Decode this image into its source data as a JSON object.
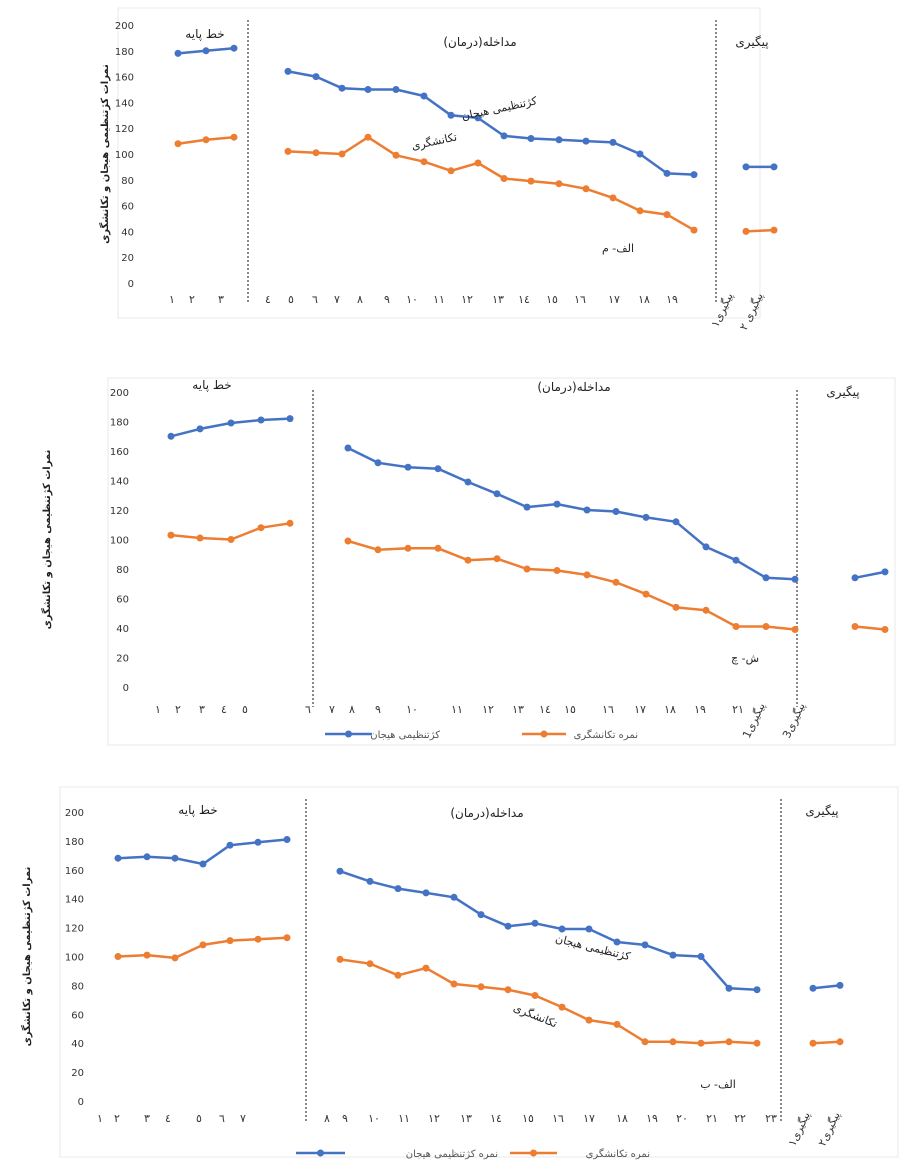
{
  "colors": {
    "anxiety": "#4472C4",
    "stammer": "#ED7D31"
  },
  "chart_data": [
    {
      "type": "line",
      "id": "top",
      "ylabel": "نمرات کژتنظیمی هیجان و تکانشگری",
      "ylim": [
        0,
        200
      ],
      "yticks": [
        "0",
        "20",
        "40",
        "60",
        "80",
        "100",
        "120",
        "140",
        "160",
        "180",
        "200"
      ],
      "phases": [
        "خط پایه",
        "مداخله(درمان)",
        "پیگیری"
      ],
      "x_labels": [
        "۱",
        "۲",
        "۳",
        "٤",
        "٥",
        "٦",
        "٧",
        "٨",
        "٩",
        "١٠",
        "١١",
        "١٢",
        "١٣",
        "١٤",
        "١٥",
        "١٦",
        "١٧",
        "١٨",
        "١٩",
        "پیگیری۱",
        "پیگیری ۲"
      ],
      "annotations": [
        "کژتنظیمی هیجان",
        "تکانشگری",
        "الف- م"
      ],
      "legend": [],
      "series": [
        {
          "key": "anxiety",
          "baseline": [
            178,
            180,
            182
          ],
          "treatment": [
            164,
            160,
            151,
            150,
            150,
            145,
            130,
            128,
            114,
            112,
            111,
            110,
            109,
            100,
            85,
            84
          ],
          "followup": [
            90,
            90
          ]
        },
        {
          "key": "stammer",
          "baseline": [
            108,
            111,
            113
          ],
          "treatment": [
            102,
            101,
            100,
            113,
            99,
            94,
            87,
            93,
            81,
            79,
            77,
            73,
            66,
            56,
            53,
            41
          ],
          "followup": [
            40,
            41
          ]
        }
      ]
    },
    {
      "type": "line",
      "id": "middle",
      "ylabel": "نمرات کژتنظیمی هیجان و تکانشگری",
      "ylim": [
        0,
        200
      ],
      "yticks": [
        "0",
        "20",
        "40",
        "60",
        "80",
        "100",
        "120",
        "140",
        "160",
        "180",
        "200"
      ],
      "phases": [
        "خط پایه",
        "مداخله(درمان)",
        "پیگیری"
      ],
      "x_labels": [
        "۱",
        "۲",
        "۳",
        "٤",
        "٥",
        "٦",
        "٧",
        "٨",
        "٩",
        "١٠",
        "١١",
        "١٢",
        "١٣",
        "١٤",
        "١٥",
        "١٦",
        "١٧",
        "١٨",
        "١٩",
        "٢١",
        "پیگیری1",
        "پیگیری3"
      ],
      "annotations": [
        "ش- چ"
      ],
      "legend": [
        "کژتنظیمی هیجان",
        "نمره تکانشگری"
      ],
      "series": [
        {
          "key": "anxiety",
          "baseline": [
            170,
            175,
            179,
            181,
            182
          ],
          "treatment": [
            162,
            152,
            149,
            148,
            139,
            131,
            122,
            124,
            120,
            119,
            115,
            112,
            95,
            86,
            74,
            73
          ],
          "followup": [
            74,
            78
          ]
        },
        {
          "key": "stammer",
          "baseline": [
            103,
            101,
            100,
            108,
            111
          ],
          "treatment": [
            99,
            93,
            94,
            94,
            86,
            87,
            80,
            79,
            76,
            71,
            63,
            54,
            52,
            41,
            41,
            39
          ],
          "followup": [
            41,
            39
          ]
        }
      ]
    },
    {
      "type": "line",
      "id": "bottom",
      "ylabel": "نمرات کژتنظیمی هیجان و تکانشگری",
      "ylim": [
        0,
        200
      ],
      "yticks": [
        "0",
        "20",
        "40",
        "60",
        "80",
        "100",
        "120",
        "140",
        "160",
        "180",
        "200"
      ],
      "phases": [
        "خط پایه",
        "مداخله(درمان)",
        "پیگیری"
      ],
      "x_labels": [
        "۱",
        "۲",
        "۳",
        "٤",
        "٥",
        "٦",
        "٧",
        "٨",
        "٩",
        "١٠",
        "١١",
        "١٢",
        "١٣",
        "١٤",
        "١٥",
        "١٦",
        "١٧",
        "١٨",
        "١٩",
        "٢٠",
        "٢١",
        "٢٢",
        "٢٣",
        "پیگیری۱",
        "پیگیری۲"
      ],
      "annotations": [
        "کژتنظیمی هیجان",
        "تکانشگری",
        "الف- ب"
      ],
      "legend": [
        "نمره کژتنظیمی هیجان",
        "نمره تکانشگری"
      ],
      "series": [
        {
          "key": "anxiety",
          "baseline": [
            168,
            169,
            168,
            164,
            177,
            179,
            181
          ],
          "treatment": [
            159,
            152,
            147,
            144,
            141,
            129,
            121,
            123,
            119,
            119,
            110,
            108,
            101,
            100,
            78,
            77
          ],
          "followup": [
            78,
            80
          ]
        },
        {
          "key": "stammer",
          "baseline": [
            100,
            101,
            99,
            108,
            111,
            112,
            113
          ],
          "treatment": [
            98,
            95,
            87,
            92,
            81,
            79,
            77,
            73,
            65,
            56,
            53,
            41,
            41,
            40,
            41,
            40
          ],
          "followup": [
            40,
            41
          ]
        }
      ]
    }
  ]
}
